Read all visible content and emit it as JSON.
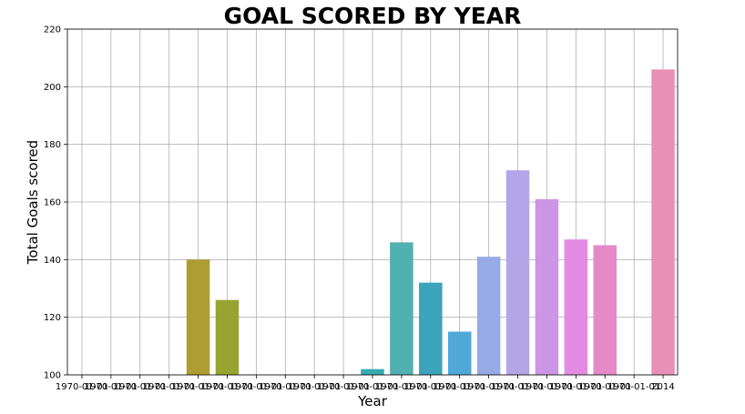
{
  "chart_data": {
    "type": "bar",
    "title": "GOAL SCORED BY YEAR",
    "xlabel": "Year",
    "ylabel": "Total Goals scored",
    "ylim": [
      100,
      220
    ],
    "yticks": [
      "100",
      "120",
      "140",
      "160",
      "180",
      "200",
      "220"
    ],
    "grid": true,
    "categories": [
      "1970-01-01",
      "1970-01-01",
      "1970-01-01",
      "1970-01-01",
      "1970-01-01",
      "1970-01-01",
      "1970-01-01",
      "1970-01-01",
      "1970-01-01",
      "1970-01-01",
      "1970-01-01",
      "1970-01-01",
      "1970-01-01",
      "1970-01-01",
      "1970-01-01",
      "1970-01-01",
      "1970-01-01",
      "1970-01-01",
      "1970-01-01",
      "1970-01-01",
      "2014"
    ],
    "values": [
      null,
      null,
      null,
      null,
      140,
      126,
      null,
      null,
      null,
      null,
      102,
      146,
      132,
      115,
      141,
      171,
      161,
      147,
      145,
      null,
      206
    ],
    "colors": [
      "#f77189",
      "#f7754f",
      "#dc8932",
      "#c39532",
      "#ae9d31",
      "#97a431",
      "#77ab31",
      "#33b07a",
      "#35ad9c",
      "#36ada4",
      "#37abb4",
      "#50b1b0",
      "#3ba3ba",
      "#4fa8d8",
      "#96aae5",
      "#b3a6e8",
      "#cc96e6",
      "#e38be3",
      "#e58ac7",
      "#ea8db5",
      "#ea90b6"
    ]
  }
}
